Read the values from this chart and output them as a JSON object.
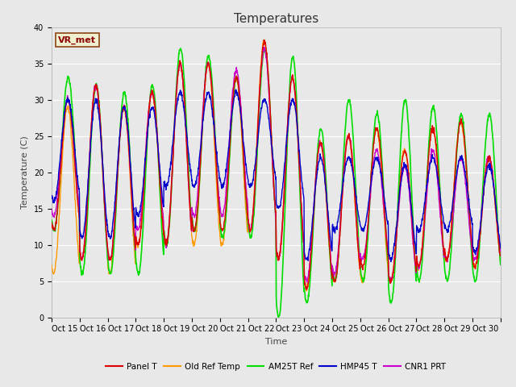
{
  "title": "Temperatures",
  "xlabel": "Time",
  "ylabel": "Temperature (C)",
  "annotation": "VR_met",
  "ylim": [
    0,
    40
  ],
  "fig_bg": "#e8e8e8",
  "plot_bg": "#e8e8e8",
  "series": {
    "Panel T": {
      "color": "#dd0000",
      "lw": 1.0,
      "zorder": 4
    },
    "Old Ref Temp": {
      "color": "#ff9900",
      "lw": 1.0,
      "zorder": 3
    },
    "AM25T Ref": {
      "color": "#00dd00",
      "lw": 1.2,
      "zorder": 3
    },
    "HMP45 T": {
      "color": "#0000cc",
      "lw": 1.0,
      "zorder": 5
    },
    "CNR1 PRT": {
      "color": "#cc00cc",
      "lw": 1.0,
      "zorder": 3
    }
  },
  "xtick_labels": [
    "Oct 15",
    "Oct 16",
    "Oct 17",
    "Oct 18",
    "Oct 19",
    "Oct 20",
    "Oct 21",
    "Oct 22",
    "Oct 23",
    "Oct 24",
    "Oct 25",
    "Oct 26",
    "Oct 27",
    "Oct 28",
    "Oct 29",
    "Oct 30"
  ],
  "ytick_vals": [
    0,
    5,
    10,
    15,
    20,
    25,
    30,
    35,
    40
  ],
  "grid_color": "#ffffff",
  "grid_lw": 0.8,
  "title_fontsize": 11,
  "axis_label_fontsize": 8,
  "tick_fontsize": 7,
  "days": 16,
  "pts_per_day": 96,
  "peaks_main": [
    30,
    32,
    29,
    31,
    35,
    35,
    33,
    38,
    33,
    24,
    25,
    26,
    23,
    26,
    27,
    22
  ],
  "troughs_main": [
    12,
    8,
    8,
    10,
    10,
    12,
    12,
    12,
    8,
    4,
    5,
    7,
    5,
    7,
    8,
    7
  ],
  "peaks_old": [
    29,
    32,
    29,
    31,
    35,
    35,
    33,
    38,
    33,
    24,
    25,
    26,
    23,
    26,
    27,
    22
  ],
  "troughs_old": [
    6,
    8,
    6,
    10,
    10,
    10,
    10,
    12,
    8,
    4,
    5,
    5,
    5,
    7,
    8,
    7
  ],
  "peaks_am25": [
    33,
    32,
    31,
    32,
    37,
    36,
    33,
    37,
    36,
    26,
    30,
    28,
    30,
    29,
    28,
    28
  ],
  "troughs_am25": [
    12,
    6,
    6,
    6,
    10,
    12,
    11,
    11,
    0,
    2,
    5,
    5,
    2,
    5,
    5,
    5
  ],
  "peaks_hmp": [
    30,
    30,
    29,
    29,
    31,
    31,
    31,
    30,
    30,
    22,
    22,
    22,
    21,
    22,
    22,
    21
  ],
  "troughs_hmp": [
    16,
    11,
    11,
    14,
    18,
    18,
    18,
    18,
    15,
    8,
    12,
    12,
    8,
    12,
    12,
    9
  ],
  "peaks_cnr": [
    30,
    32,
    29,
    31,
    35,
    35,
    34,
    37,
    33,
    24,
    25,
    23,
    21,
    23,
    22,
    22
  ],
  "troughs_cnr": [
    14,
    8,
    8,
    12,
    10,
    14,
    14,
    12,
    8,
    5,
    6,
    8,
    5,
    7,
    8,
    8
  ]
}
